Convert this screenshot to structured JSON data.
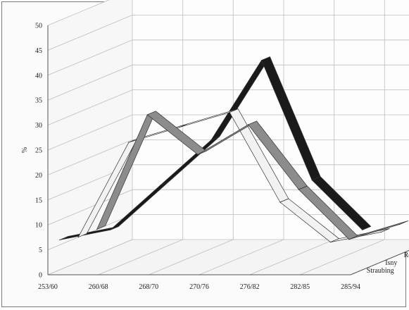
{
  "chart_data": {
    "type": "line",
    "subtype": "3d-ribbon",
    "ylabel": "%",
    "ylim": [
      0,
      50
    ],
    "y_ticks": [
      "0",
      "5",
      "10",
      "15",
      "20",
      "25",
      "30",
      "35",
      "40",
      "45",
      "50"
    ],
    "categories": [
      "253/60",
      "260/68",
      "268/70",
      "270/76",
      "276/82",
      "282/85",
      "285/94"
    ],
    "grid": true,
    "series": [
      {
        "name": "Regensburg",
        "values": [
          5,
          28,
          20,
          26,
          13,
          3,
          6
        ],
        "color": "#8c8c8c"
      },
      {
        "name": "Isny",
        "values": [
          5,
          24,
          27,
          30,
          12,
          4,
          6
        ],
        "color": "#f2f2f2"
      },
      {
        "name": "Straubing",
        "values": [
          6,
          8,
          17,
          26,
          42,
          18,
          8
        ],
        "color": "#1a1a1a"
      }
    ]
  }
}
